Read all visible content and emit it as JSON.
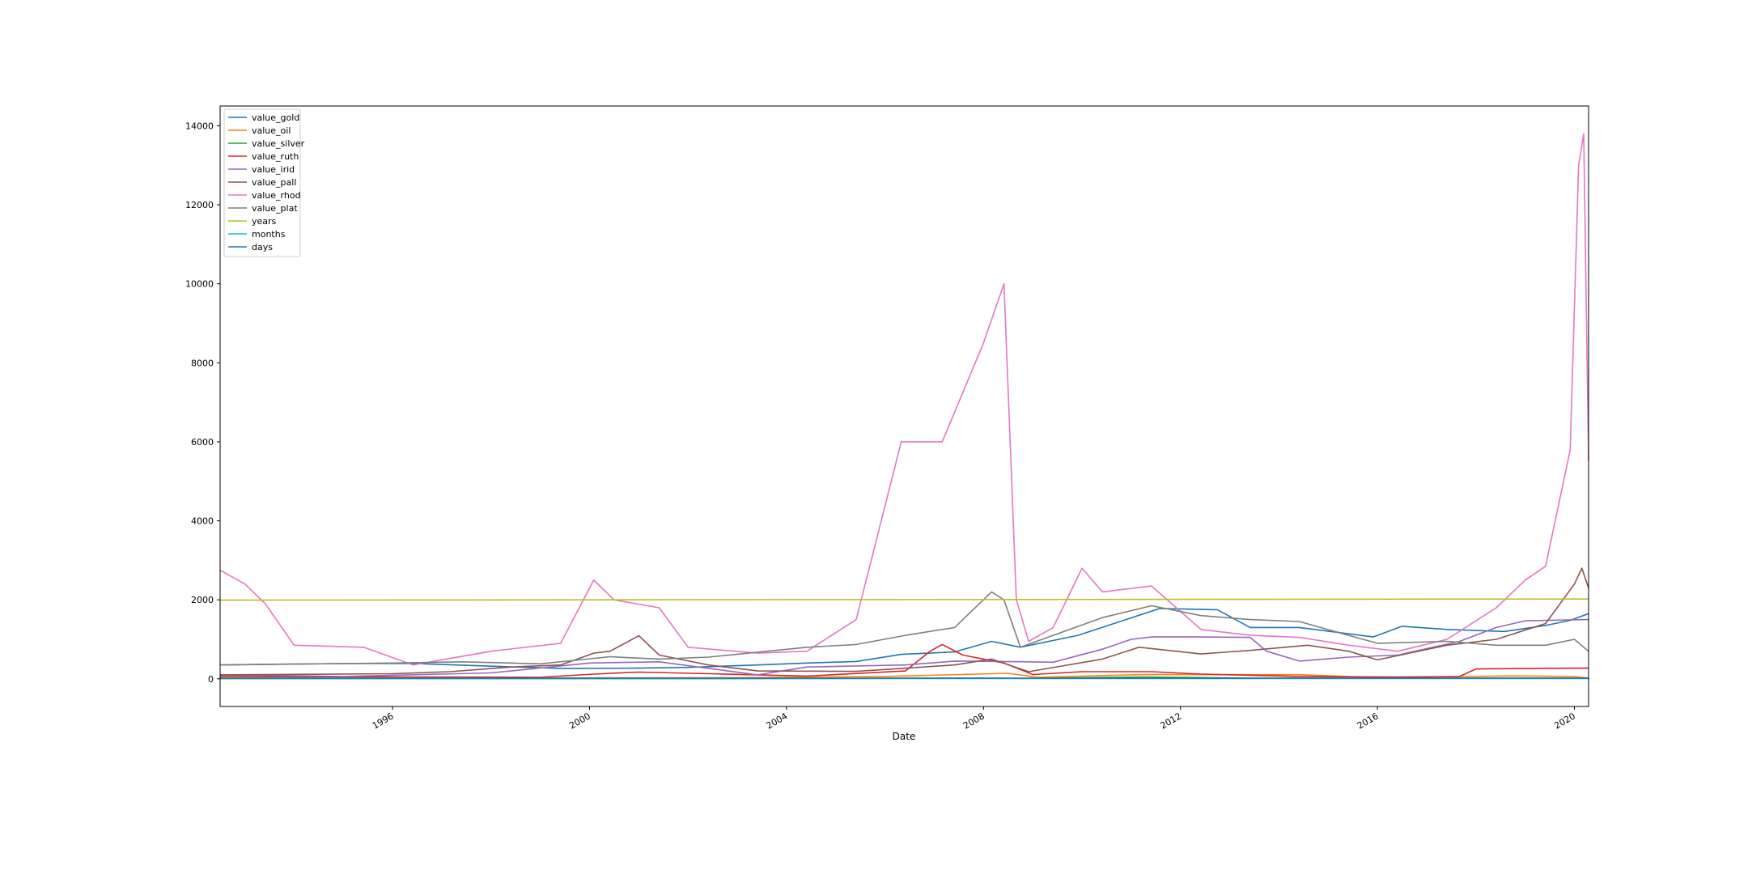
{
  "chart_data": {
    "type": "line",
    "title": "",
    "xlabel": "Date",
    "ylabel": "",
    "xlim": [
      "1992-07-01",
      "2020-04-15"
    ],
    "ylim": [
      -700,
      14500
    ],
    "x_ticks": [
      "1996",
      "2000",
      "2004",
      "2008",
      "2012",
      "2016",
      "2020"
    ],
    "y_ticks": [
      0,
      2000,
      4000,
      6000,
      8000,
      10000,
      12000,
      14000
    ],
    "grid": false,
    "legend": "top-left",
    "series": [
      {
        "name": "value_gold",
        "color": "#1f77b4",
        "x": [
          "1992-07-01",
          "1993-07-01",
          "1995-01-01",
          "1996-06-01",
          "1998-01-01",
          "1999-07-01",
          "2001-01-01",
          "2002-01-01",
          "2003-06-01",
          "2004-06-01",
          "2005-06-01",
          "2006-05-01",
          "2007-06-01",
          "2008-03-01",
          "2008-10-01",
          "2009-12-01",
          "2011-08-01",
          "2012-10-01",
          "2013-06-01",
          "2014-06-01",
          "2015-12-01",
          "2016-07-01",
          "2017-06-01",
          "2018-08-01",
          "2019-06-01",
          "2019-12-01",
          "2020-04-15"
        ],
        "y": [
          350,
          370,
          385,
          390,
          320,
          260,
          270,
          290,
          350,
          400,
          440,
          620,
          680,
          950,
          800,
          1100,
          1780,
          1750,
          1300,
          1300,
          1060,
          1330,
          1250,
          1200,
          1350,
          1480,
          1650
        ]
      },
      {
        "name": "value_oil",
        "color": "#ff7f0e",
        "x": [
          "1992-07-01",
          "1998-12-01",
          "2000-01-01",
          "2003-01-01",
          "2006-01-01",
          "2008-07-01",
          "2009-02-01",
          "2011-04-01",
          "2014-06-01",
          "2016-01-01",
          "2018-10-01",
          "2020-01-01",
          "2020-04-15"
        ],
        "y": [
          20,
          12,
          25,
          30,
          60,
          140,
          40,
          110,
          105,
          30,
          75,
          60,
          20
        ]
      },
      {
        "name": "value_silver",
        "color": "#2ca02c",
        "x": [
          "1992-07-01",
          "2001-01-01",
          "2004-01-01",
          "2008-03-01",
          "2008-11-01",
          "2011-04-01",
          "2013-06-01",
          "2016-01-01",
          "2020-04-15"
        ],
        "y": [
          4,
          5,
          6,
          20,
          10,
          48,
          20,
          14,
          15
        ]
      },
      {
        "name": "value_ruth",
        "color": "#d62728",
        "x": [
          "1992-07-01",
          "1999-01-01",
          "2000-02-01",
          "2001-01-01",
          "2002-06-01",
          "2004-06-01",
          "2006-06-01",
          "2006-12-01",
          "2007-03-01",
          "2007-08-01",
          "2008-06-01",
          "2009-01-01",
          "2010-01-01",
          "2011-06-01",
          "2012-06-01",
          "2014-06-01",
          "2016-06-01",
          "2017-09-01",
          "2018-01-01",
          "2019-01-01",
          "2020-04-15"
        ],
        "y": [
          60,
          40,
          120,
          170,
          130,
          70,
          200,
          700,
          870,
          600,
          400,
          110,
          180,
          180,
          120,
          60,
          45,
          60,
          250,
          260,
          270
        ]
      },
      {
        "name": "value_irid",
        "color": "#9467bd",
        "x": [
          "1992-07-01",
          "1995-01-01",
          "1998-01-01",
          "2000-01-01",
          "2001-06-01",
          "2003-06-01",
          "2004-06-01",
          "2006-06-01",
          "2007-06-01",
          "2008-06-01",
          "2009-06-01",
          "2010-06-01",
          "2011-01-01",
          "2011-06-01",
          "2012-06-01",
          "2013-06-01",
          "2013-10-01",
          "2014-06-01",
          "2015-06-01",
          "2016-06-01",
          "2017-09-01",
          "2018-06-01",
          "2019-01-01",
          "2020-04-15"
        ],
        "y": [
          100,
          60,
          150,
          400,
          430,
          100,
          300,
          350,
          450,
          440,
          420,
          750,
          1000,
          1060,
          1060,
          1050,
          700,
          450,
          550,
          600,
          950,
          1300,
          1470,
          1500
        ]
      },
      {
        "name": "value_pall",
        "color": "#8c564b",
        "x": [
          "1992-07-01",
          "1996-01-01",
          "1997-03-01",
          "1998-06-01",
          "1999-06-01",
          "2000-02-01",
          "2000-06-01",
          "2001-01-01",
          "2001-06-01",
          "2002-06-01",
          "2003-06-01",
          "2005-06-01",
          "2007-06-01",
          "2008-03-01",
          "2008-12-01",
          "2010-06-01",
          "2011-03-01",
          "2012-06-01",
          "2013-06-01",
          "2014-08-01",
          "2015-06-01",
          "2016-01-01",
          "2017-06-01",
          "2018-06-01",
          "2019-06-01",
          "2020-01-01",
          "2020-02-25",
          "2020-04-15"
        ],
        "y": [
          100,
          130,
          180,
          300,
          350,
          650,
          700,
          1090,
          600,
          350,
          200,
          190,
          350,
          500,
          180,
          500,
          800,
          630,
          720,
          850,
          700,
          480,
          850,
          1000,
          1400,
          2400,
          2800,
          2300
        ]
      },
      {
        "name": "value_rhod",
        "color": "#e377c2",
        "x": [
          "1992-07-01",
          "1993-01-01",
          "1993-06-01",
          "1994-01-01",
          "1995-06-01",
          "1996-06-01",
          "1998-01-01",
          "1999-06-01",
          "2000-02-01",
          "2000-07-01",
          "2001-06-01",
          "2002-01-01",
          "2003-06-01",
          "2004-06-01",
          "2005-06-01",
          "2006-05-01",
          "2007-03-01",
          "2008-01-01",
          "2008-06-01",
          "2008-09-01",
          "2008-12-01",
          "2009-06-01",
          "2010-01-01",
          "2010-06-01",
          "2011-06-01",
          "2012-06-01",
          "2013-06-01",
          "2014-06-01",
          "2015-06-01",
          "2016-06-01",
          "2017-06-01",
          "2018-06-01",
          "2019-01-01",
          "2019-06-01",
          "2019-12-01",
          "2020-02-01",
          "2020-03-10",
          "2020-04-15"
        ],
        "y": [
          2750,
          2400,
          1900,
          850,
          800,
          350,
          700,
          900,
          2500,
          2000,
          1800,
          800,
          650,
          700,
          1500,
          6000,
          6000,
          8500,
          10000,
          2000,
          950,
          1300,
          2800,
          2200,
          2350,
          1250,
          1100,
          1050,
          850,
          700,
          1000,
          1800,
          2500,
          2850,
          5800,
          13000,
          13800,
          5500
        ]
      },
      {
        "name": "value_plat",
        "color": "#7f7f7f",
        "x": [
          "1992-07-01",
          "1996-01-01",
          "1997-06-01",
          "1999-01-01",
          "2000-06-01",
          "2001-06-01",
          "2002-06-01",
          "2004-06-01",
          "2005-06-01",
          "2006-06-01",
          "2007-06-01",
          "2008-03-01",
          "2008-06-01",
          "2008-10-01",
          "2009-06-01",
          "2010-06-01",
          "2011-06-01",
          "2012-06-01",
          "2013-06-01",
          "2014-06-01",
          "2015-06-01",
          "2016-01-01",
          "2017-06-01",
          "2018-06-01",
          "2019-06-01",
          "2020-01-01",
          "2020-03-10",
          "2020-04-15"
        ],
        "y": [
          350,
          400,
          430,
          380,
          560,
          500,
          550,
          800,
          870,
          1100,
          1300,
          2200,
          2000,
          800,
          1100,
          1550,
          1850,
          1600,
          1500,
          1450,
          1100,
          900,
          950,
          850,
          850,
          1000,
          800,
          700
        ]
      },
      {
        "name": "years",
        "color": "#bcbd22",
        "x": [
          "1992-07-01",
          "2020-04-15"
        ],
        "y": [
          1992,
          2020
        ]
      },
      {
        "name": "months",
        "color": "#17becf",
        "x": [
          "1992-07-01",
          "2020-04-15"
        ],
        "y": [
          6,
          6
        ]
      },
      {
        "name": "days",
        "color": "#1f77b4",
        "x": [
          "1992-07-01",
          "2020-04-15"
        ],
        "y": [
          15,
          15
        ]
      }
    ]
  }
}
